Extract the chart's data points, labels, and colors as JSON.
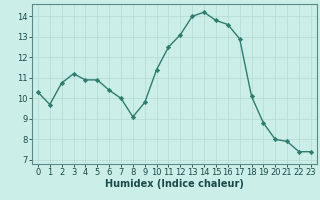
{
  "x": [
    0,
    1,
    2,
    3,
    4,
    5,
    6,
    7,
    8,
    9,
    10,
    11,
    12,
    13,
    14,
    15,
    16,
    17,
    18,
    19,
    20,
    21,
    22,
    23
  ],
  "y": [
    10.3,
    9.7,
    10.75,
    11.2,
    10.9,
    10.9,
    10.4,
    10.0,
    9.1,
    9.8,
    11.4,
    12.5,
    13.1,
    14.0,
    14.2,
    13.8,
    13.6,
    12.9,
    10.1,
    8.8,
    8.0,
    7.9,
    7.4,
    7.4
  ],
  "line_color": "#2e7d6e",
  "marker": "D",
  "marker_size": 2.2,
  "linewidth": 1.0,
  "background_color": "#cceee8",
  "grid_color": "#b8ddd8",
  "xlabel": "Humidex (Indice chaleur)",
  "xlim": [
    -0.5,
    23.5
  ],
  "ylim": [
    6.8,
    14.6
  ],
  "yticks": [
    7,
    8,
    9,
    10,
    11,
    12,
    13,
    14
  ],
  "xticks": [
    0,
    1,
    2,
    3,
    4,
    5,
    6,
    7,
    8,
    9,
    10,
    11,
    12,
    13,
    14,
    15,
    16,
    17,
    18,
    19,
    20,
    21,
    22,
    23
  ],
  "tick_fontsize": 6,
  "xlabel_fontsize": 7,
  "tick_color": "#1a4a4a",
  "spine_color": "#5a8a8a",
  "grid_linewidth": 0.6
}
